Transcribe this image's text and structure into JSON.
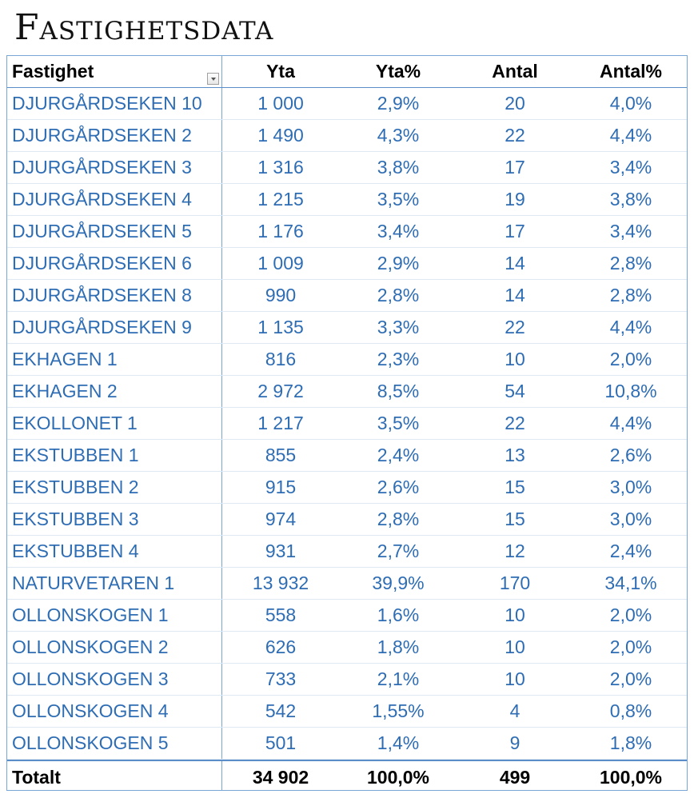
{
  "title": "Fastighetsdata",
  "columns": [
    "Fastighet",
    "Yta",
    "Yta%",
    "Antal",
    "Antal%"
  ],
  "rows": [
    [
      "DJURGÅRDSEKEN 10",
      "1 000",
      "2,9%",
      "20",
      "4,0%"
    ],
    [
      "DJURGÅRDSEKEN 2",
      "1 490",
      "4,3%",
      "22",
      "4,4%"
    ],
    [
      "DJURGÅRDSEKEN 3",
      "1 316",
      "3,8%",
      "17",
      "3,4%"
    ],
    [
      "DJURGÅRDSEKEN 4",
      "1 215",
      "3,5%",
      "19",
      "3,8%"
    ],
    [
      "DJURGÅRDSEKEN 5",
      "1 176",
      "3,4%",
      "17",
      "3,4%"
    ],
    [
      "DJURGÅRDSEKEN 6",
      "1 009",
      "2,9%",
      "14",
      "2,8%"
    ],
    [
      "DJURGÅRDSEKEN 8",
      "990",
      "2,8%",
      "14",
      "2,8%"
    ],
    [
      "DJURGÅRDSEKEN 9",
      "1 135",
      "3,3%",
      "22",
      "4,4%"
    ],
    [
      "EKHAGEN 1",
      "816",
      "2,3%",
      "10",
      "2,0%"
    ],
    [
      "EKHAGEN 2",
      "2 972",
      "8,5%",
      "54",
      "10,8%"
    ],
    [
      "EKOLLONET 1",
      "1 217",
      "3,5%",
      "22",
      "4,4%"
    ],
    [
      "EKSTUBBEN 1",
      "855",
      "2,4%",
      "13",
      "2,6%"
    ],
    [
      "EKSTUBBEN 2",
      "915",
      "2,6%",
      "15",
      "3,0%"
    ],
    [
      "EKSTUBBEN 3",
      "974",
      "2,8%",
      "15",
      "3,0%"
    ],
    [
      "EKSTUBBEN 4",
      "931",
      "2,7%",
      "12",
      "2,4%"
    ],
    [
      "NATURVETAREN 1",
      "13 932",
      "39,9%",
      "170",
      "34,1%"
    ],
    [
      "OLLONSKOGEN 1",
      "558",
      "1,6%",
      "10",
      "2,0%"
    ],
    [
      "OLLONSKOGEN 2",
      "626",
      "1,8%",
      "10",
      "2,0%"
    ],
    [
      "OLLONSKOGEN 3",
      "733",
      "2,1%",
      "10",
      "2,0%"
    ],
    [
      "OLLONSKOGEN 4",
      "542",
      "1,55%",
      "4",
      "0,8%"
    ],
    [
      "OLLONSKOGEN 5",
      "501",
      "1,4%",
      "9",
      "1,8%"
    ]
  ],
  "total": [
    "Totalt",
    "34 902",
    "100,0%",
    "499",
    "100,0%"
  ],
  "icons": {
    "filter": "filter-dropdown-icon"
  },
  "colors": {
    "accent": "#2e6db4",
    "border": "#7aa6d6"
  }
}
